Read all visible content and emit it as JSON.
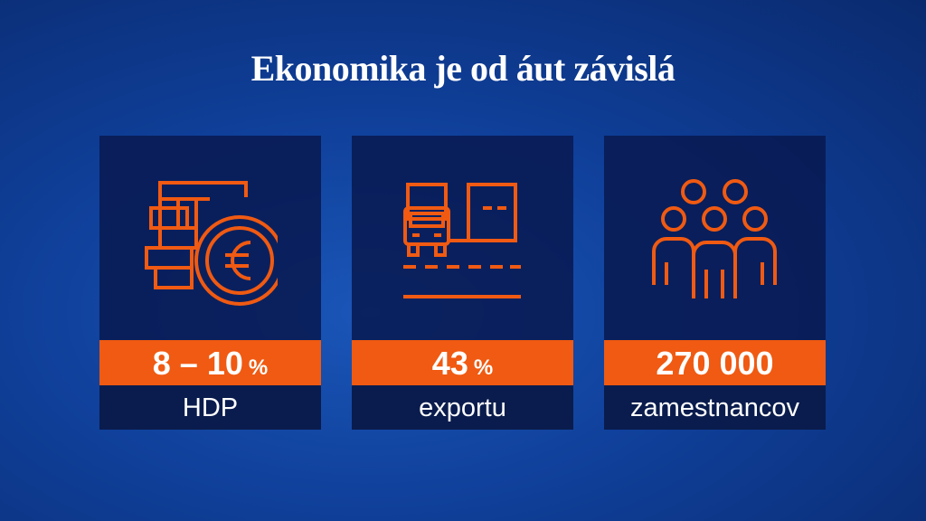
{
  "title": "Ekonomika je od áut závislá",
  "cards": [
    {
      "value": "8 – 10",
      "unit": "%",
      "label": "HDP"
    },
    {
      "value": "43",
      "unit": "%",
      "label": "exportu"
    },
    {
      "value": "270 000",
      "label": "zamestnancov"
    }
  ]
}
